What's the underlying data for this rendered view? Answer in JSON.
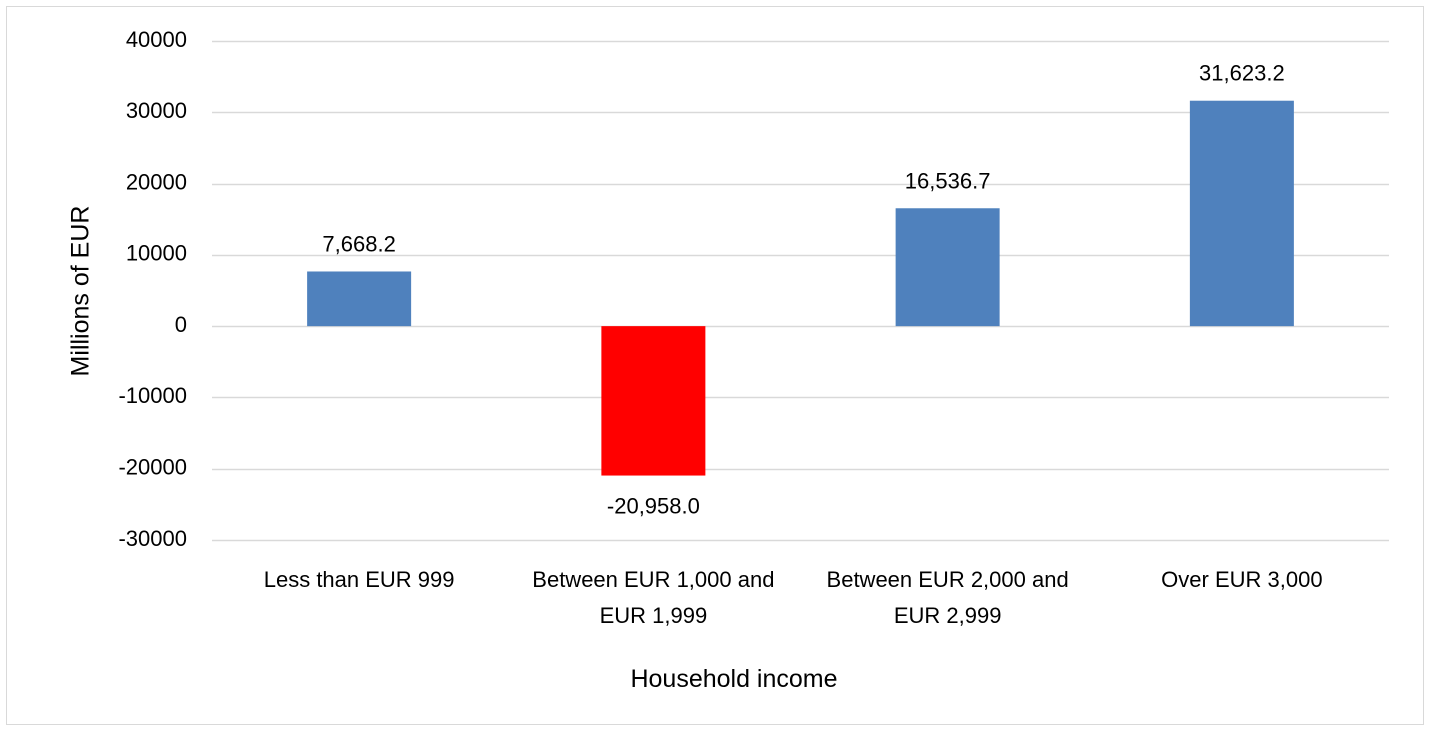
{
  "chart_data": {
    "type": "bar",
    "categories": [
      [
        "Less than EUR 999"
      ],
      [
        "Between EUR 1,000 and",
        "EUR 1,999"
      ],
      [
        "Between EUR 2,000 and",
        "EUR 2,999"
      ],
      [
        "Over EUR 3,000"
      ]
    ],
    "values": [
      7668.2,
      -20958.0,
      16536.7,
      31623.2
    ],
    "data_labels": [
      "7,668.2",
      "-20,958.0",
      "16,536.7",
      "31,623.2"
    ],
    "bar_colors": [
      "#4f81bd",
      "#ff0000",
      "#4f81bd",
      "#4f81bd"
    ],
    "ylim": [
      -30000,
      40000
    ],
    "yticks": [
      40000,
      30000,
      20000,
      10000,
      0,
      -10000,
      -20000,
      -30000
    ],
    "ytick_labels": [
      "40000",
      "30000",
      "20000",
      "10000",
      "0",
      "-10000",
      "-20000",
      "-30000"
    ],
    "xlabel": "Household income",
    "ylabel": "Millions of EUR",
    "grid": true,
    "gridline_color": "#d9d9d9"
  }
}
